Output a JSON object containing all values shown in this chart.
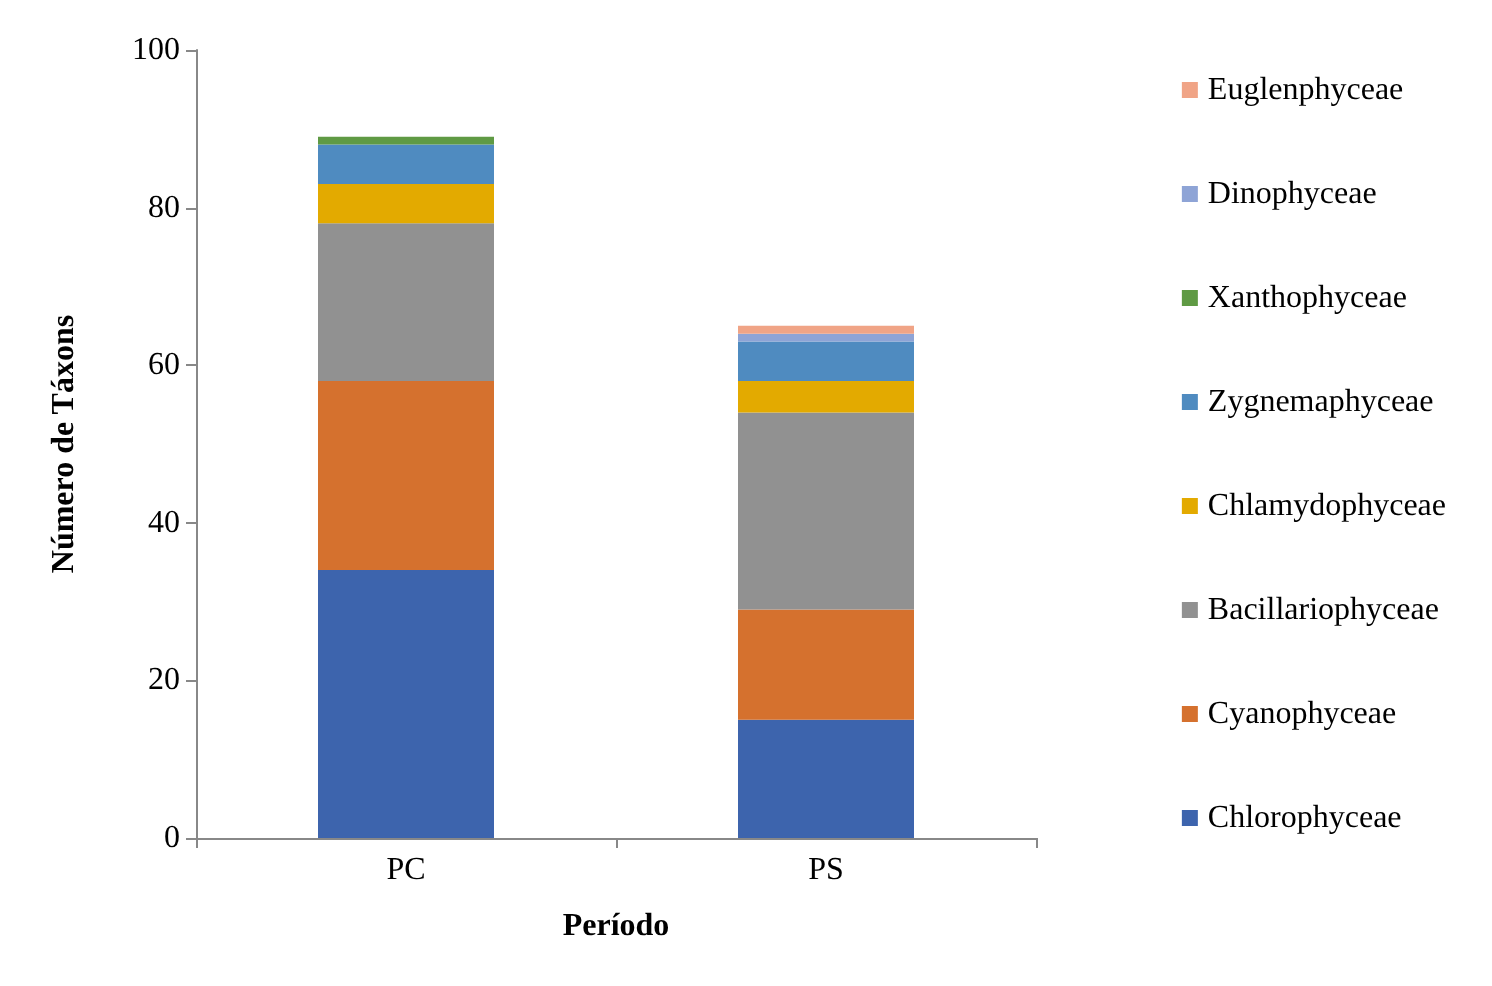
{
  "chart_data": {
    "type": "bar",
    "stacked": true,
    "xlabel": "Período",
    "ylabel": "Número de Táxons",
    "categories": [
      "PC",
      "PS"
    ],
    "ylim": [
      0,
      100
    ],
    "yticks": [
      0,
      20,
      40,
      60,
      80,
      100
    ],
    "grid": false,
    "legend": "right",
    "series": [
      {
        "name": "Chlorophyceae",
        "color": "#3d64ad",
        "values": [
          34,
          15
        ]
      },
      {
        "name": "Cyanophyceae",
        "color": "#d5712e",
        "values": [
          24,
          14
        ]
      },
      {
        "name": "Bacillariophyceae",
        "color": "#919191",
        "values": [
          20,
          25
        ]
      },
      {
        "name": "Chlamydophyceae",
        "color": "#e3aa00",
        "values": [
          5,
          4
        ]
      },
      {
        "name": "Zygnemaphyceae",
        "color": "#4f8bc0",
        "values": [
          5,
          5
        ]
      },
      {
        "name": "Xanthophyceae",
        "color": "#5f9a44",
        "values": [
          1,
          0
        ]
      },
      {
        "name": "Dinophyceae",
        "color": "#8ea4d6",
        "values": [
          0,
          1
        ]
      },
      {
        "name": "Euglenphyceae",
        "color": "#f0a486",
        "values": [
          0,
          1
        ]
      }
    ]
  }
}
